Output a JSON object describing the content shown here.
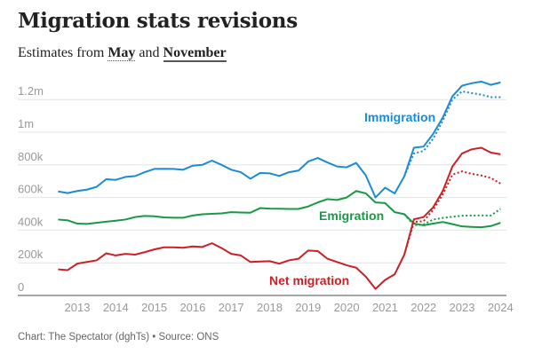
{
  "chart_data": {
    "type": "line",
    "title": "Migration stats revisions",
    "subtitle": {
      "prefix": "Estimates from",
      "may": "May",
      "and": "and",
      "november": "November"
    },
    "footer": "Chart: The Spectator (dghTs) • Source: ONS",
    "ylim": [
      0,
      1300000
    ],
    "yticks": [
      {
        "v": 0,
        "label": "0"
      },
      {
        "v": 200000,
        "label": "200k"
      },
      {
        "v": 400000,
        "label": "400k"
      },
      {
        "v": 600000,
        "label": "600k"
      },
      {
        "v": 800000,
        "label": "800k"
      },
      {
        "v": 1000000,
        "label": "1m"
      },
      {
        "v": 1200000,
        "label": "1.2m"
      }
    ],
    "xticks": [
      2013,
      2014,
      2015,
      2016,
      2017,
      2018,
      2019,
      2020,
      2021,
      2022,
      2023,
      2024
    ],
    "x_start": 2012.5,
    "x_step": 0.25,
    "may_start": 2021.5,
    "series": [
      {
        "name": "Immigration",
        "color": "#1a8bd6",
        "november": [
          637,
          627,
          640,
          648,
          665,
          712,
          708,
          726,
          731,
          755,
          775,
          776,
          775,
          770,
          795,
          800,
          826,
          800,
          770,
          755,
          715,
          750,
          748,
          732,
          755,
          765,
          820,
          842,
          815,
          790,
          785,
          812,
          735,
          600,
          660,
          625,
          730,
          905,
          912,
          990,
          1090,
          1220,
          1285,
          1300,
          1310,
          1290,
          1305
        ],
        "may": [
          730,
          870,
          885,
          960,
          1070,
          1200,
          1250,
          1240,
          1230,
          1215,
          1215
        ]
      },
      {
        "name": "Emigration",
        "color": "#179a45",
        "november": [
          465,
          460,
          440,
          438,
          445,
          452,
          458,
          465,
          480,
          487,
          485,
          478,
          476,
          476,
          490,
          497,
          500,
          503,
          510,
          508,
          507,
          535,
          532,
          531,
          530,
          530,
          545,
          570,
          590,
          585,
          600,
          640,
          625,
          570,
          566,
          510,
          498,
          440,
          430,
          440,
          450,
          437,
          423,
          420,
          418,
          425,
          445
        ],
        "may": [
          498,
          430,
          435,
          465,
          475,
          482,
          488,
          490,
          490,
          490,
          530
        ]
      },
      {
        "name": "Net migration",
        "color": "#cc1f26",
        "november": [
          160,
          155,
          195,
          205,
          215,
          258,
          245,
          255,
          250,
          265,
          282,
          295,
          295,
          292,
          300,
          297,
          320,
          290,
          255,
          245,
          205,
          208,
          210,
          195,
          215,
          225,
          275,
          272,
          225,
          205,
          185,
          170,
          115,
          40,
          95,
          130,
          250,
          467,
          480,
          540,
          640,
          790,
          870,
          895,
          905,
          875,
          865
        ],
        "may": [
          250,
          450,
          455,
          525,
          620,
          740,
          760,
          745,
          735,
          720,
          685
        ]
      }
    ],
    "unit": "thousands"
  }
}
